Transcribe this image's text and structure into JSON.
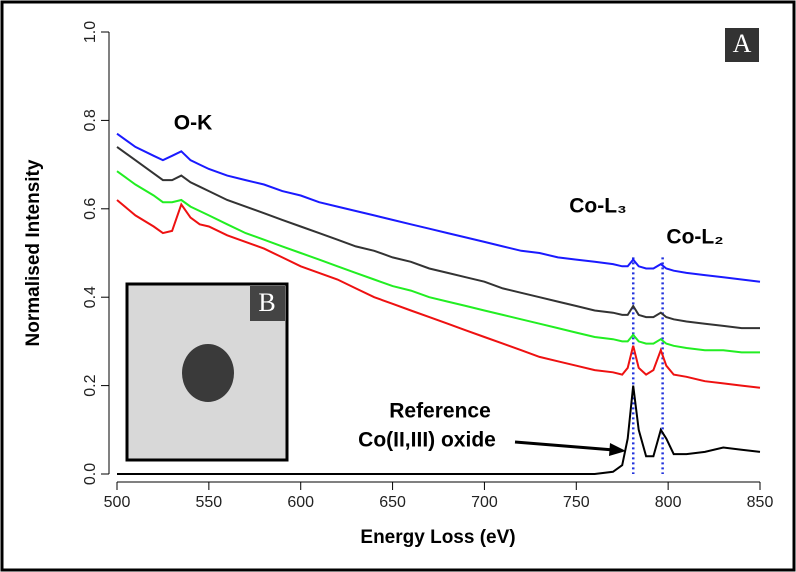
{
  "chart_data": {
    "type": "line",
    "xlabel": "Energy Loss (eV)",
    "ylabel": "Normalised Intensity",
    "panel_label": "A",
    "inset_label": "B",
    "annotations": [
      "O-K",
      "Co-L₃",
      "Co-L₂",
      "Reference",
      "Co(II,III) oxide"
    ],
    "reference_lines": {
      "x": [
        781,
        797
      ],
      "color": "#2233dd",
      "style": "dotted"
    },
    "xlim": [
      500,
      850
    ],
    "xticks": [
      500,
      550,
      600,
      650,
      700,
      750,
      800,
      850
    ],
    "ylim": [
      0,
      1
    ],
    "yticks": [
      {
        "value": 0,
        "label": "0.0"
      },
      0.2,
      0.4,
      0.6,
      0.8,
      {
        "value": 1,
        "label": "1.0"
      }
    ],
    "grid": false,
    "x": [
      500,
      510,
      520,
      525,
      530,
      535,
      540,
      545,
      550,
      560,
      570,
      580,
      590,
      600,
      610,
      620,
      630,
      640,
      650,
      660,
      670,
      680,
      690,
      700,
      710,
      720,
      730,
      740,
      750,
      760,
      770,
      775,
      778,
      781,
      784,
      788,
      792,
      796,
      799,
      803,
      810,
      820,
      830,
      840,
      850
    ],
    "series": [
      {
        "color": "#1a1aff",
        "values": [
          0.77,
          0.74,
          0.72,
          0.71,
          0.72,
          0.73,
          0.71,
          0.7,
          0.69,
          0.675,
          0.665,
          0.655,
          0.64,
          0.63,
          0.615,
          0.605,
          0.595,
          0.585,
          0.575,
          0.565,
          0.555,
          0.545,
          0.535,
          0.525,
          0.515,
          0.505,
          0.5,
          0.49,
          0.485,
          0.48,
          0.475,
          0.47,
          0.47,
          0.485,
          0.47,
          0.465,
          0.465,
          0.475,
          0.465,
          0.46,
          0.455,
          0.45,
          0.445,
          0.44,
          0.435
        ]
      },
      {
        "color": "#333333",
        "values": [
          0.74,
          0.71,
          0.68,
          0.665,
          0.665,
          0.675,
          0.66,
          0.65,
          0.64,
          0.62,
          0.605,
          0.59,
          0.575,
          0.56,
          0.545,
          0.53,
          0.515,
          0.505,
          0.49,
          0.48,
          0.465,
          0.455,
          0.445,
          0.435,
          0.42,
          0.41,
          0.4,
          0.39,
          0.38,
          0.37,
          0.365,
          0.36,
          0.36,
          0.38,
          0.36,
          0.355,
          0.355,
          0.365,
          0.355,
          0.35,
          0.345,
          0.34,
          0.335,
          0.33,
          0.33
        ]
      },
      {
        "color": "#22ee22",
        "values": [
          0.685,
          0.655,
          0.63,
          0.615,
          0.615,
          0.62,
          0.605,
          0.595,
          0.585,
          0.565,
          0.545,
          0.53,
          0.515,
          0.5,
          0.485,
          0.47,
          0.455,
          0.44,
          0.425,
          0.415,
          0.4,
          0.39,
          0.38,
          0.37,
          0.36,
          0.35,
          0.34,
          0.33,
          0.32,
          0.31,
          0.305,
          0.3,
          0.3,
          0.315,
          0.3,
          0.295,
          0.295,
          0.305,
          0.295,
          0.29,
          0.285,
          0.28,
          0.28,
          0.275,
          0.275
        ]
      },
      {
        "color": "#ee1111",
        "values": [
          0.62,
          0.585,
          0.56,
          0.545,
          0.55,
          0.61,
          0.58,
          0.565,
          0.56,
          0.54,
          0.525,
          0.51,
          0.49,
          0.47,
          0.455,
          0.44,
          0.42,
          0.4,
          0.385,
          0.37,
          0.355,
          0.34,
          0.325,
          0.31,
          0.295,
          0.28,
          0.265,
          0.255,
          0.245,
          0.235,
          0.23,
          0.225,
          0.24,
          0.29,
          0.24,
          0.225,
          0.235,
          0.28,
          0.245,
          0.225,
          0.22,
          0.21,
          0.205,
          0.2,
          0.195
        ]
      },
      {
        "color": "#000000",
        "values": [
          0,
          0,
          0,
          0,
          0,
          0,
          0,
          0,
          0,
          0,
          0,
          0,
          0,
          0,
          0,
          0,
          0,
          0,
          0,
          0,
          0,
          0,
          0,
          0,
          0,
          0,
          0,
          0,
          0,
          0,
          0.005,
          0.02,
          0.08,
          0.2,
          0.1,
          0.04,
          0.04,
          0.1,
          0.08,
          0.045,
          0.045,
          0.05,
          0.06,
          0.055,
          0.05
        ]
      }
    ]
  }
}
